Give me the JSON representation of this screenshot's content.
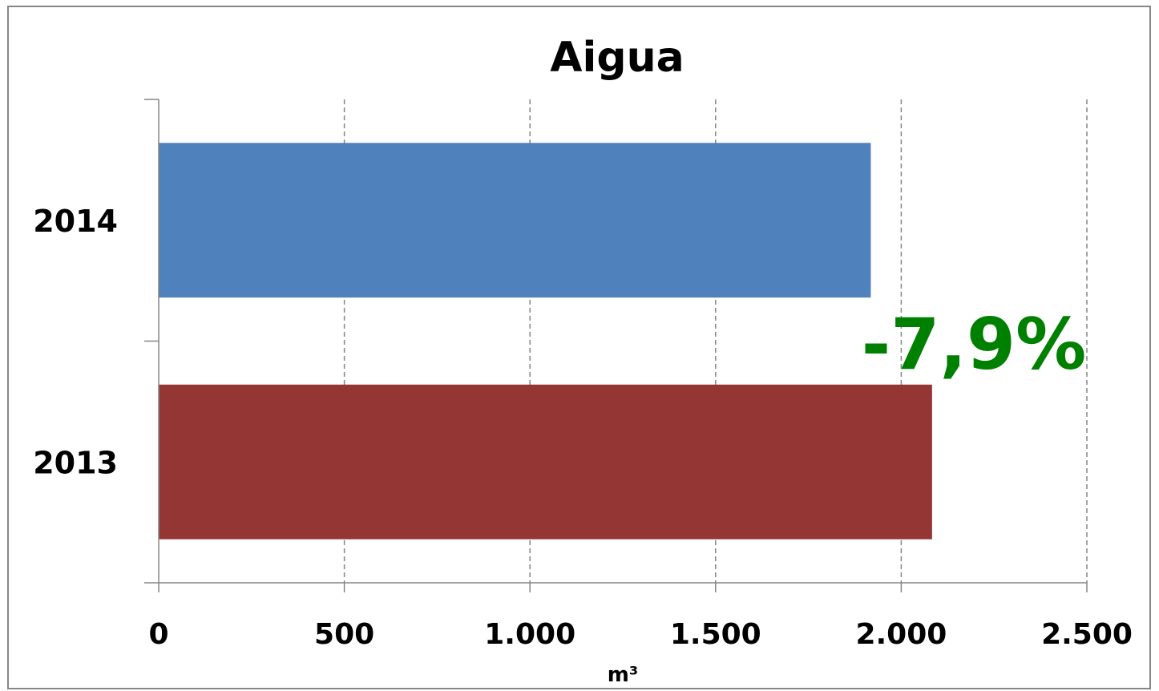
{
  "chart_data": {
    "type": "bar",
    "orientation": "horizontal",
    "title": "Aigua",
    "xlabel": "m³",
    "ylabel": "",
    "categories": [
      "2013",
      "2014"
    ],
    "values": [
      2083,
      1918
    ],
    "colors": [
      "#943634",
      "#4F81BD"
    ],
    "xlim": [
      0,
      2500
    ],
    "xticks": [
      0,
      500,
      1000,
      1500,
      2000,
      2500
    ],
    "xtick_labels": [
      "0",
      "500",
      "1.000",
      "1.500",
      "2.000",
      "2.500"
    ],
    "grid": "vertical dashed",
    "legend": "none",
    "annotation": {
      "text": "-7,9%",
      "color": "#008000"
    }
  }
}
